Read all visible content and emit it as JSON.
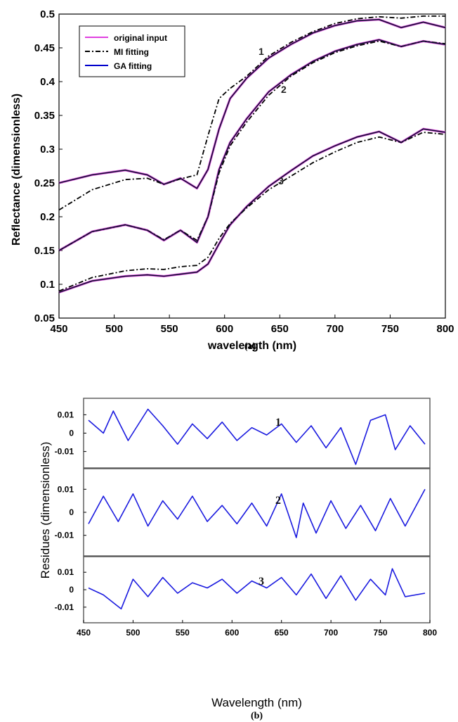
{
  "colors": {
    "original": "#e040e0",
    "mi": "#000000",
    "ga": "#0000cc",
    "residue": "#1a1adf"
  },
  "chart_data": [
    {
      "type": "line",
      "panel_label": "(a)",
      "xlabel": "wavelength (nm)",
      "ylabel": "Reflectance (dimensionless)",
      "xlim": [
        450,
        800
      ],
      "ylim": [
        0.05,
        0.5
      ],
      "xticks": [
        "450",
        "500",
        "550",
        "600",
        "650",
        "700",
        "750",
        "800"
      ],
      "yticks": [
        "0.05",
        "0.1",
        "0.15",
        "0.2",
        "0.25",
        "0.3",
        "0.35",
        "0.4",
        "0.45",
        "0.5"
      ],
      "legend": {
        "position": "top-left",
        "entries": [
          "original input",
          "MI  fitting",
          "GA fitting"
        ]
      },
      "curve_labels": [
        "1",
        "2",
        "3"
      ],
      "x": [
        450,
        480,
        510,
        530,
        545,
        560,
        575,
        585,
        595,
        605,
        620,
        640,
        660,
        680,
        700,
        720,
        740,
        760,
        780,
        800
      ],
      "curves": [
        {
          "label": "1",
          "original": [
            0.25,
            0.262,
            0.269,
            0.262,
            0.248,
            0.257,
            0.242,
            0.27,
            0.33,
            0.375,
            0.405,
            0.435,
            0.455,
            0.472,
            0.483,
            0.49,
            0.492,
            0.48,
            0.488,
            0.48
          ],
          "mi": [
            0.21,
            0.24,
            0.255,
            0.257,
            0.248,
            0.256,
            0.262,
            0.32,
            0.375,
            0.39,
            0.408,
            0.438,
            0.458,
            0.474,
            0.486,
            0.493,
            0.496,
            0.494,
            0.497,
            0.497
          ],
          "ga": [
            0.25,
            0.262,
            0.269,
            0.262,
            0.248,
            0.257,
            0.242,
            0.27,
            0.33,
            0.375,
            0.405,
            0.435,
            0.455,
            0.472,
            0.483,
            0.49,
            0.492,
            0.48,
            0.488,
            0.48
          ]
        },
        {
          "label": "2",
          "original": [
            0.15,
            0.178,
            0.188,
            0.18,
            0.165,
            0.18,
            0.162,
            0.2,
            0.27,
            0.31,
            0.345,
            0.385,
            0.41,
            0.43,
            0.445,
            0.455,
            0.462,
            0.452,
            0.46,
            0.455
          ],
          "mi": [
            0.15,
            0.178,
            0.188,
            0.18,
            0.166,
            0.18,
            0.165,
            0.2,
            0.265,
            0.305,
            0.34,
            0.38,
            0.408,
            0.428,
            0.443,
            0.453,
            0.46,
            0.452,
            0.46,
            0.456
          ],
          "ga": [
            0.15,
            0.178,
            0.188,
            0.18,
            0.165,
            0.18,
            0.162,
            0.2,
            0.27,
            0.31,
            0.345,
            0.385,
            0.41,
            0.43,
            0.445,
            0.455,
            0.462,
            0.452,
            0.46,
            0.455
          ]
        },
        {
          "label": "3",
          "original": [
            0.088,
            0.105,
            0.112,
            0.114,
            0.112,
            0.115,
            0.118,
            0.13,
            0.16,
            0.188,
            0.215,
            0.245,
            0.268,
            0.29,
            0.305,
            0.318,
            0.326,
            0.31,
            0.33,
            0.325
          ],
          "mi": [
            0.09,
            0.11,
            0.12,
            0.123,
            0.122,
            0.126,
            0.128,
            0.14,
            0.168,
            0.19,
            0.213,
            0.24,
            0.26,
            0.28,
            0.296,
            0.31,
            0.318,
            0.31,
            0.325,
            0.322
          ],
          "ga": [
            0.088,
            0.105,
            0.112,
            0.114,
            0.112,
            0.115,
            0.118,
            0.13,
            0.16,
            0.188,
            0.215,
            0.245,
            0.268,
            0.29,
            0.305,
            0.318,
            0.326,
            0.31,
            0.33,
            0.325
          ]
        }
      ]
    },
    {
      "type": "line",
      "panel_label": "(b)",
      "xlabel": "Wavelength (nm)",
      "ylabel": "Residues  (dimensionless)",
      "xlim": [
        450,
        800
      ],
      "ylim": [
        -0.018,
        0.018
      ],
      "xticks": [
        "450",
        "500",
        "550",
        "600",
        "650",
        "700",
        "750",
        "800"
      ],
      "yticks": [
        "0.01",
        "0",
        "-0.01"
      ],
      "subplots": [
        {
          "label": "1",
          "x": [
            455,
            470,
            480,
            495,
            515,
            530,
            545,
            560,
            575,
            590,
            605,
            620,
            635,
            650,
            665,
            680,
            695,
            710,
            725,
            740,
            755,
            765,
            780,
            795
          ],
          "values": [
            0.007,
            0.0,
            0.012,
            -0.004,
            0.013,
            0.004,
            -0.006,
            0.005,
            -0.003,
            0.006,
            -0.004,
            0.003,
            -0.001,
            0.005,
            -0.005,
            0.004,
            -0.008,
            0.003,
            -0.017,
            0.007,
            0.01,
            -0.009,
            0.004,
            -0.006
          ]
        },
        {
          "label": "2",
          "x": [
            455,
            470,
            485,
            500,
            515,
            530,
            545,
            560,
            575,
            590,
            605,
            620,
            635,
            650,
            665,
            672,
            685,
            700,
            715,
            730,
            745,
            760,
            775,
            795
          ],
          "values": [
            -0.005,
            0.007,
            -0.004,
            0.008,
            -0.006,
            0.005,
            -0.003,
            0.007,
            -0.004,
            0.003,
            -0.005,
            0.004,
            -0.006,
            0.008,
            -0.011,
            0.004,
            -0.009,
            0.005,
            -0.007,
            0.003,
            -0.008,
            0.006,
            -0.006,
            0.01
          ]
        },
        {
          "label": "3",
          "x": [
            455,
            470,
            488,
            500,
            515,
            530,
            545,
            560,
            575,
            590,
            605,
            620,
            635,
            650,
            665,
            680,
            695,
            710,
            725,
            740,
            755,
            762,
            775,
            795
          ],
          "values": [
            0.001,
            -0.003,
            -0.011,
            0.006,
            -0.004,
            0.007,
            -0.002,
            0.004,
            0.001,
            0.006,
            -0.002,
            0.005,
            0.001,
            0.007,
            -0.003,
            0.009,
            -0.005,
            0.008,
            -0.006,
            0.006,
            -0.003,
            0.012,
            -0.004,
            -0.002
          ]
        }
      ]
    }
  ]
}
